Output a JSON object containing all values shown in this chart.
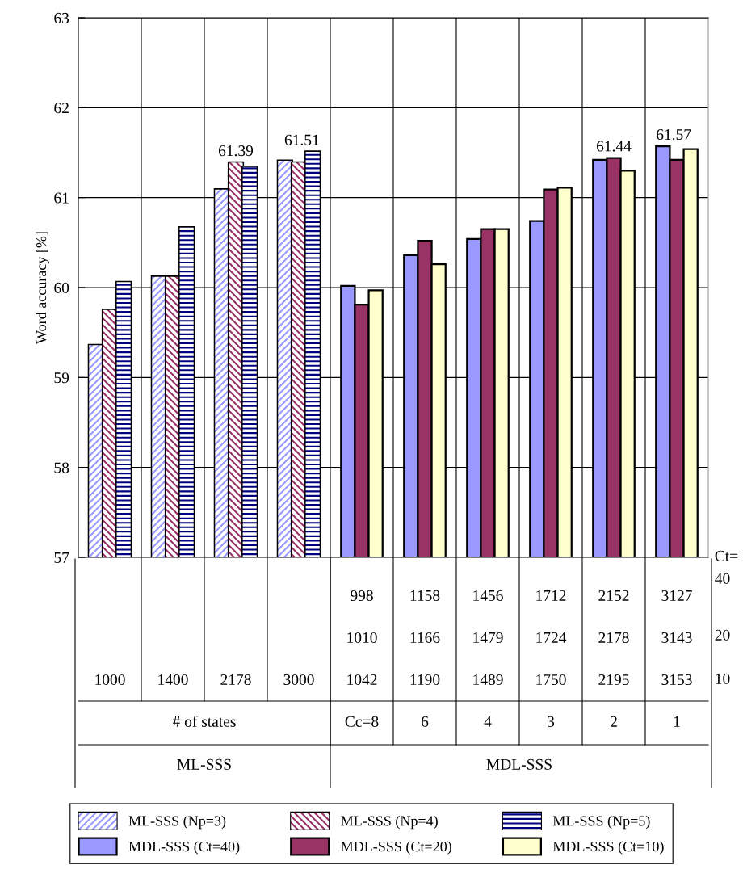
{
  "chart_data": {
    "type": "bar",
    "ylabel": "Word accuracy [%]",
    "categories": [
      "1000",
      "1400",
      "2178",
      "3000",
      "998\n1010\n1042",
      "1158\n1166\n1190",
      "1456\n1479\n1489",
      "1712\n1724\n1750",
      "2152\n2178\n2195",
      "3127\n3143\n3153"
    ],
    "series": [
      {
        "name": "ML-SSS (Np=3)",
        "color": "#9999ff",
        "values": [
          59.36,
          60.12,
          61.09,
          61.41,
          null,
          null,
          null,
          null,
          null,
          null
        ]
      },
      {
        "name": "ML-SSS (Np=4)",
        "color": "#993366",
        "values": [
          59.75,
          60.12,
          61.39,
          61.39,
          null,
          null,
          null,
          null,
          null,
          null
        ],
        "value_labels": [
          null,
          null,
          "61.39",
          null,
          null,
          null,
          null,
          null,
          null,
          null
        ]
      },
      {
        "name": "ML-SSS (Np=5)",
        "color": "#000080",
        "values": [
          60.06,
          60.67,
          61.34,
          61.51,
          null,
          null,
          null,
          null,
          null,
          null
        ],
        "value_labels": [
          null,
          null,
          null,
          "61.51",
          null,
          null,
          null,
          null,
          null,
          null
        ]
      },
      {
        "name": "MDL-SSS (Ct=40)",
        "color": "#9999ff",
        "values": [
          null,
          null,
          null,
          null,
          60.02,
          60.36,
          60.54,
          60.74,
          61.42,
          61.57
        ],
        "value_labels": [
          null,
          null,
          null,
          null,
          null,
          null,
          null,
          null,
          null,
          "61.57"
        ]
      },
      {
        "name": "MDL-SSS (Ct=20)",
        "color": "#993366",
        "values": [
          null,
          null,
          null,
          null,
          59.81,
          60.52,
          60.65,
          61.09,
          61.44,
          61.42
        ],
        "value_labels": [
          null,
          null,
          null,
          null,
          null,
          null,
          null,
          null,
          "61.44",
          null
        ]
      },
      {
        "name": "MDL-SSS (Ct=10)",
        "color": "#ffffcc",
        "values": [
          null,
          null,
          null,
          null,
          59.97,
          60.26,
          60.65,
          61.11,
          61.3,
          61.54
        ]
      }
    ],
    "ylim": [
      57,
      63
    ],
    "yticks": [
      57,
      58,
      59,
      60,
      61,
      62,
      63
    ],
    "grid": true,
    "legend": "bottom",
    "annotations": [
      "# of states",
      "Cc=8",
      "6",
      "4",
      "3",
      "2",
      "1",
      "ML-SSS",
      "MDL-SSS",
      "Ct=",
      "40",
      "20",
      "10"
    ]
  }
}
